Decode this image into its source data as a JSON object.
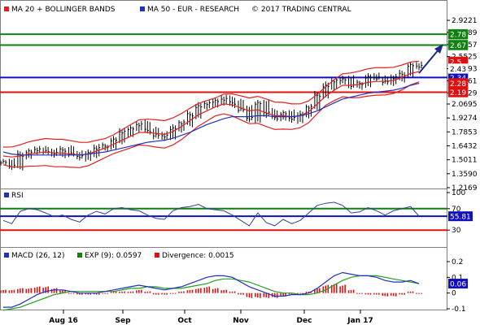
{
  "price_panel": {
    "legend": [
      {
        "label": "MA 20 + BOLLINGER BANDS",
        "color": "#e02020"
      },
      {
        "label": "MA 50 - EUR - RESEARCH",
        "color": "#2030c0"
      }
    ],
    "copyright": "© 2017 TRADING CENTRAL",
    "axis_ticks": [
      "2.9221",
      "2.7989",
      "2.6757",
      "2.5525",
      "2.4293",
      "2.3061",
      "2.1829",
      "2.0695",
      "1.9274",
      "1.7853",
      "1.6432",
      "1.5011",
      "1.3590",
      "1.2169"
    ],
    "levels": [
      {
        "value": 2.78,
        "label": "2.78",
        "color": "#108010"
      },
      {
        "value": 2.67,
        "label": "2.67",
        "color": "#108010"
      },
      {
        "value": 2.5,
        "label": "2.5",
        "color": "#e01010"
      },
      {
        "value": 2.34,
        "label": "2.34",
        "color": "#1010c0"
      },
      {
        "value": 2.19,
        "label": "2.19",
        "color": "#e01010"
      }
    ],
    "extra_tags": [
      {
        "value": 2.43,
        "label": "2.43",
        "color": "#ffffff",
        "text_color": "#000000"
      },
      {
        "value": 2.28,
        "label": "2.28",
        "color": "#e01010",
        "text_color": "#ffffff"
      }
    ]
  },
  "rsi_panel": {
    "title": "RSI",
    "axis_ticks": [
      "100",
      "70",
      "30"
    ],
    "levels": [
      {
        "value": 70,
        "color": "#108010"
      },
      {
        "value": 55.81,
        "color": "#1010c0"
      },
      {
        "value": 30,
        "color": "#e01010"
      }
    ],
    "current_label": "55.81"
  },
  "macd_panel": {
    "legend": [
      {
        "label": "MACD (26, 12)",
        "color": "#2030c0"
      },
      {
        "label": "EXP (9): 0.0597",
        "color": "#108010"
      },
      {
        "label": "Divergence: 0.0015",
        "color": "#e01010"
      }
    ],
    "axis_ticks": [
      "0.2",
      "0.1",
      "0",
      "-0.1"
    ],
    "current_label": "0.06"
  },
  "time_axis": [
    "Aug 16",
    "Sep",
    "Oct",
    "Nov",
    "Dec",
    "Jan 17"
  ],
  "colors": {
    "ma20": "#e02020",
    "ma50": "#2030c0",
    "bars": "#000000",
    "rsi_line": "#3040a0",
    "macd_line": "#2030c0",
    "signal_line": "#20a020",
    "histogram": "#e01010",
    "arrow": "#1a2a80"
  },
  "chart_data": [
    {
      "type": "line",
      "title": "",
      "series": [
        {
          "name": "Price",
          "values": [
            1.48,
            1.44,
            1.55,
            1.58,
            1.6,
            1.59,
            1.57,
            1.6,
            1.56,
            1.53,
            1.57,
            1.62,
            1.64,
            1.7,
            1.78,
            1.82,
            1.86,
            1.8,
            1.75,
            1.74,
            1.82,
            1.88,
            1.96,
            2.04,
            2.07,
            2.1,
            2.12,
            2.08,
            2.01,
            1.92,
            2.08,
            1.98,
            1.93,
            1.97,
            1.92,
            1.96,
            2.04,
            2.16,
            2.25,
            2.3,
            2.32,
            2.26,
            2.28,
            2.34,
            2.33,
            2.3,
            2.34,
            2.37,
            2.46,
            2.45
          ]
        },
        {
          "name": "MA 20",
          "values": [
            1.54,
            1.53,
            1.54,
            1.56,
            1.57,
            1.58,
            1.57,
            1.57,
            1.56,
            1.55,
            1.56,
            1.59,
            1.62,
            1.66,
            1.7,
            1.74,
            1.78,
            1.78,
            1.77,
            1.76,
            1.79,
            1.84,
            1.9,
            1.96,
            2.0,
            2.04,
            2.07,
            2.06,
            2.03,
            2.0,
            2.01,
            1.98,
            1.95,
            1.95,
            1.94,
            1.95,
            1.99,
            2.07,
            2.15,
            2.21,
            2.26,
            2.26,
            2.27,
            2.29,
            2.3,
            2.3,
            2.31,
            2.34,
            2.38,
            2.4
          ]
        },
        {
          "name": "MA 50",
          "values": [
            1.58,
            1.56,
            1.55,
            1.55,
            1.55,
            1.55,
            1.55,
            1.55,
            1.55,
            1.55,
            1.56,
            1.57,
            1.58,
            1.6,
            1.62,
            1.64,
            1.66,
            1.68,
            1.69,
            1.7,
            1.72,
            1.75,
            1.78,
            1.82,
            1.86,
            1.89,
            1.92,
            1.94,
            1.94,
            1.94,
            1.95,
            1.95,
            1.94,
            1.94,
            1.94,
            1.95,
            1.97,
            2.0,
            2.04,
            2.08,
            2.12,
            2.14,
            2.16,
            2.18,
            2.19,
            2.2,
            2.21,
            2.23,
            2.26,
            2.28
          ]
        }
      ],
      "ylim": [
        1.2169,
        2.9221
      ]
    },
    {
      "type": "line",
      "title": "RSI",
      "series": [
        {
          "name": "RSI",
          "values": [
            48,
            42,
            65,
            70,
            68,
            62,
            55,
            58,
            50,
            45,
            58,
            65,
            60,
            70,
            72,
            68,
            66,
            58,
            52,
            50,
            66,
            72,
            74,
            78,
            70,
            68,
            66,
            58,
            48,
            38,
            62,
            44,
            38,
            50,
            42,
            48,
            62,
            76,
            80,
            82,
            76,
            62,
            64,
            72,
            66,
            58,
            66,
            70,
            74,
            56
          ]
        }
      ],
      "ylim": [
        0,
        100
      ]
    },
    {
      "type": "bar",
      "title": "",
      "series": [
        {
          "name": "MACD (26, 12)",
          "values": [
            -0.09,
            -0.09,
            -0.07,
            -0.04,
            -0.01,
            0.01,
            0.02,
            0.02,
            0.01,
            0.0,
            0.0,
            0.0,
            0.01,
            0.02,
            0.03,
            0.04,
            0.05,
            0.04,
            0.03,
            0.02,
            0.03,
            0.04,
            0.06,
            0.08,
            0.1,
            0.11,
            0.11,
            0.1,
            0.07,
            0.04,
            0.02,
            0.0,
            -0.02,
            -0.02,
            -0.01,
            -0.01,
            0.0,
            0.03,
            0.07,
            0.11,
            0.13,
            0.12,
            0.11,
            0.11,
            0.1,
            0.08,
            0.07,
            0.07,
            0.08,
            0.06
          ]
        },
        {
          "name": "EXP (9)",
          "values": [
            -0.11,
            -0.1,
            -0.09,
            -0.07,
            -0.05,
            -0.03,
            -0.01,
            0.0,
            0.01,
            0.01,
            0.01,
            0.01,
            0.01,
            0.01,
            0.02,
            0.03,
            0.03,
            0.04,
            0.04,
            0.03,
            0.03,
            0.03,
            0.04,
            0.05,
            0.06,
            0.08,
            0.09,
            0.09,
            0.08,
            0.07,
            0.05,
            0.03,
            0.01,
            0.0,
            0.0,
            -0.01,
            -0.01,
            0.0,
            0.02,
            0.05,
            0.08,
            0.1,
            0.11,
            0.11,
            0.11,
            0.1,
            0.09,
            0.08,
            0.07,
            0.06
          ]
        },
        {
          "name": "Divergence",
          "values": [
            0.02,
            0.02,
            0.03,
            0.03,
            0.04,
            0.04,
            0.03,
            0.02,
            0.0,
            -0.01,
            -0.01,
            -0.01,
            0.0,
            0.01,
            0.01,
            0.01,
            0.02,
            0.01,
            -0.01,
            -0.01,
            0.0,
            0.01,
            0.02,
            0.03,
            0.04,
            0.03,
            0.02,
            0.01,
            -0.01,
            -0.03,
            -0.03,
            -0.03,
            -0.03,
            -0.02,
            -0.01,
            0.0,
            0.01,
            0.03,
            0.05,
            0.06,
            0.05,
            0.02,
            0.0,
            -0.01,
            -0.01,
            -0.02,
            -0.02,
            -0.01,
            0.01,
            0.0
          ]
        }
      ],
      "ylim": [
        -0.1,
        0.2
      ]
    }
  ]
}
